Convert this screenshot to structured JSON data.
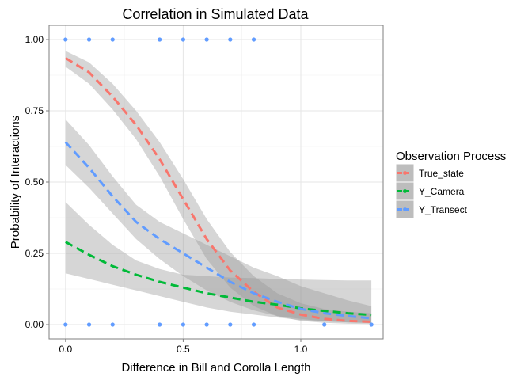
{
  "chart_data": {
    "type": "line",
    "title": "Correlation in Simulated Data",
    "xlabel": "Difference in Bill and Corolla Length",
    "ylabel": "Probability of Interactions",
    "xlim": [
      -0.07,
      1.35
    ],
    "ylim": [
      -0.05,
      1.05
    ],
    "x_ticks": [
      {
        "value": 0.0,
        "label": "0.0"
      },
      {
        "value": 0.5,
        "label": "0.5"
      },
      {
        "value": 1.0,
        "label": "1.0"
      }
    ],
    "y_ticks": [
      {
        "value": 0.0,
        "label": "0.00"
      },
      {
        "value": 0.25,
        "label": "0.25"
      },
      {
        "value": 0.5,
        "label": "0.50"
      },
      {
        "value": 0.75,
        "label": "0.75"
      },
      {
        "value": 1.0,
        "label": "1.00"
      }
    ],
    "grid": true,
    "legend": {
      "title": "Observation Process",
      "placement": "right"
    },
    "points": {
      "color": "#619CFF",
      "values": [
        [
          0.0,
          1
        ],
        [
          0.1,
          1
        ],
        [
          0.2,
          1
        ],
        [
          0.4,
          1
        ],
        [
          0.5,
          1
        ],
        [
          0.6,
          1
        ],
        [
          0.7,
          1
        ],
        [
          0.8,
          1
        ],
        [
          0.0,
          0
        ],
        [
          0.1,
          0
        ],
        [
          0.2,
          0
        ],
        [
          0.4,
          0
        ],
        [
          0.5,
          0
        ],
        [
          0.6,
          0
        ],
        [
          0.7,
          0
        ],
        [
          0.8,
          0
        ],
        [
          1.1,
          0
        ],
        [
          1.3,
          0
        ]
      ]
    },
    "series": [
      {
        "name": "True_state",
        "color": "#F8766D",
        "x": [
          0.0,
          0.1,
          0.2,
          0.3,
          0.4,
          0.5,
          0.6,
          0.7,
          0.8,
          0.9,
          1.0,
          1.1,
          1.2,
          1.3
        ],
        "y": [
          0.935,
          0.885,
          0.8,
          0.7,
          0.58,
          0.44,
          0.3,
          0.19,
          0.115,
          0.06,
          0.035,
          0.02,
          0.013,
          0.01
        ],
        "lower": [
          0.905,
          0.845,
          0.755,
          0.65,
          0.52,
          0.37,
          0.23,
          0.13,
          0.065,
          0.03,
          0.013,
          0.006,
          0.003,
          0.002
        ],
        "upper": [
          0.96,
          0.92,
          0.845,
          0.75,
          0.64,
          0.51,
          0.37,
          0.255,
          0.17,
          0.11,
          0.075,
          0.055,
          0.045,
          0.04
        ]
      },
      {
        "name": "Y_Camera",
        "color": "#00BA38",
        "x": [
          0.0,
          0.1,
          0.2,
          0.3,
          0.4,
          0.5,
          0.6,
          0.7,
          0.8,
          0.9,
          1.0,
          1.1,
          1.2,
          1.3
        ],
        "y": [
          0.29,
          0.245,
          0.205,
          0.175,
          0.15,
          0.13,
          0.11,
          0.095,
          0.08,
          0.07,
          0.057,
          0.048,
          0.04,
          0.034
        ],
        "lower": [
          0.18,
          0.16,
          0.14,
          0.12,
          0.1,
          0.08,
          0.06,
          0.045,
          0.035,
          0.025,
          0.016,
          0.012,
          0.008,
          0.006
        ],
        "upper": [
          0.43,
          0.35,
          0.28,
          0.225,
          0.195,
          0.175,
          0.17,
          0.165,
          0.163,
          0.16,
          0.158,
          0.156,
          0.155,
          0.155
        ]
      },
      {
        "name": "Y_Transect",
        "color": "#619CFF",
        "x": [
          0.0,
          0.1,
          0.2,
          0.3,
          0.4,
          0.5,
          0.6,
          0.7,
          0.8,
          0.9,
          1.0,
          1.1,
          1.2,
          1.3
        ],
        "y": [
          0.64,
          0.55,
          0.45,
          0.36,
          0.3,
          0.25,
          0.2,
          0.15,
          0.11,
          0.08,
          0.055,
          0.04,
          0.03,
          0.022
        ],
        "lower": [
          0.56,
          0.48,
          0.39,
          0.3,
          0.23,
          0.17,
          0.12,
          0.08,
          0.05,
          0.03,
          0.02,
          0.012,
          0.008,
          0.005
        ],
        "upper": [
          0.72,
          0.63,
          0.52,
          0.42,
          0.36,
          0.32,
          0.28,
          0.24,
          0.2,
          0.17,
          0.135,
          0.11,
          0.085,
          0.065
        ]
      }
    ]
  }
}
